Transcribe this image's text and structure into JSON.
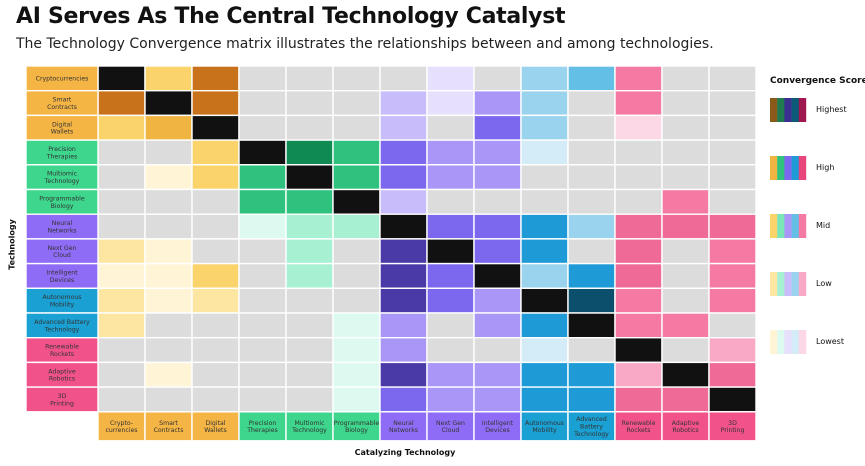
{
  "chart_data": {
    "type": "heatmap",
    "title": "AI Serves As The Central Technology Catalyst",
    "subtitle": "The Technology Convergence matrix illustrates the relationships between and among technologies.",
    "ylabel": "Technology",
    "xlabel": "Catalyzing Technology",
    "legend_title": "Convergence Score",
    "legend_position": "right",
    "levels": [
      "Lowest",
      "Low",
      "Mid",
      "High",
      "Highest"
    ],
    "legend_items": [
      {
        "label": "Highest",
        "colors": [
          "#8b5a1a",
          "#1f7a4d",
          "#3b2f8f",
          "#0b5a78",
          "#a01850"
        ]
      },
      {
        "label": "High",
        "colors": [
          "#f0b440",
          "#2ec27e",
          "#7b68ee",
          "#1e9bd7",
          "#e8457a"
        ]
      },
      {
        "label": "Mid",
        "colors": [
          "#fbd36b",
          "#78e6b7",
          "#a996f7",
          "#63bfe6",
          "#f57aa3"
        ]
      },
      {
        "label": "Low",
        "colors": [
          "#fde6a2",
          "#a8f0d2",
          "#c9bcfa",
          "#9ad3ee",
          "#f9a8c6"
        ]
      },
      {
        "label": "Lowest",
        "colors": [
          "#fff4d6",
          "#dcfaef",
          "#e6e0fd",
          "#d3ecf8",
          "#fcd7e5"
        ]
      }
    ],
    "technologies": [
      {
        "label": "Cryptocurrencies",
        "row_label": "Cryptocurrencies",
        "col_label": "Crypto-\ncurrencies",
        "group": "finance"
      },
      {
        "label": "Smart Contracts",
        "row_label": "Smart\nContracts",
        "col_label": "Smart\nContracts",
        "group": "finance"
      },
      {
        "label": "Digital Wallets",
        "row_label": "Digital\nWallets",
        "col_label": "Digital\nWallets",
        "group": "finance"
      },
      {
        "label": "Precision Therapies",
        "row_label": "Precision\nTherapies",
        "col_label": "Precision\nTherapies",
        "group": "bio"
      },
      {
        "label": "Multiomic Technology",
        "row_label": "Multiomic\nTechnology",
        "col_label": "Multiomic\nTechnology",
        "group": "bio"
      },
      {
        "label": "Programmable Biology",
        "row_label": "Programmable\nBiology",
        "col_label": "Programmable\nBiology",
        "group": "bio"
      },
      {
        "label": "Neural Networks",
        "row_label": "Neural\nNetworks",
        "col_label": "Neural\nNetworks",
        "group": "ai"
      },
      {
        "label": "Next Gen Cloud",
        "row_label": "Next Gen\nCloud",
        "col_label": "Next Gen\nCloud",
        "group": "ai"
      },
      {
        "label": "Intelligent Devices",
        "row_label": "Intelligent\nDevices",
        "col_label": "Intelligent\nDevices",
        "group": "ai"
      },
      {
        "label": "Autonomous Mobility",
        "row_label": "Autonomous\nMobility",
        "col_label": "Autonomous\nMobility",
        "group": "robotics"
      },
      {
        "label": "Advanced Battery Technology",
        "row_label": "Advanced Battery\nTechnology",
        "col_label": "Advanced\nBattery\nTechnology",
        "group": "robotics"
      },
      {
        "label": "Renewable Rockets",
        "row_label": "Renewable\nRockets",
        "col_label": "Renewable\nRockets",
        "group": "space"
      },
      {
        "label": "Adaptive Robotics",
        "row_label": "Adaptive\nRobotics",
        "col_label": "Adaptive\nRobotics",
        "group": "space"
      },
      {
        "label": "3D Printing",
        "row_label": "3D\nPrinting",
        "col_label": "3D\nPrinting",
        "group": "space"
      }
    ],
    "groups": {
      "finance": {
        "color": "#f5b545",
        "shades": [
          "#fff4d6",
          "#fde6a2",
          "#fbd36b",
          "#f0b440",
          "#c8721c"
        ]
      },
      "bio": {
        "color": "#3dd68c",
        "shades": [
          "#dcfaef",
          "#a8f0d2",
          "#78e6b7",
          "#2ec27e",
          "#0f8a52"
        ]
      },
      "ai": {
        "color": "#8f6cf5",
        "shades": [
          "#e6e0fd",
          "#c9bcfa",
          "#a996f7",
          "#7b68ee",
          "#4a3aa8"
        ]
      },
      "robotics": {
        "color": "#1aa0d3",
        "shades": [
          "#d3ecf8",
          "#9ad3ee",
          "#63bfe6",
          "#1e9bd7",
          "#0b4f6c"
        ]
      },
      "space": {
        "color": "#f2528a",
        "shades": [
          "#fcd7e5",
          "#f9a8c6",
          "#f57aa3",
          "#f06a98",
          "#c81f5c"
        ]
      }
    },
    "diagonal_color": "#111111",
    "none_color": "#dcdcdc",
    "matrix": [
      [
        -2,
        3,
        5,
        0,
        0,
        0,
        0,
        1,
        0,
        2,
        3,
        3,
        0,
        0
      ],
      [
        5,
        -2,
        5,
        0,
        0,
        0,
        2,
        1,
        3,
        2,
        0,
        3,
        0,
        0
      ],
      [
        3,
        4,
        -2,
        0,
        0,
        0,
        2,
        0,
        4,
        2,
        0,
        1,
        0,
        0
      ],
      [
        0,
        0,
        3,
        -2,
        5,
        4,
        4,
        3,
        3,
        1,
        0,
        0,
        0,
        0
      ],
      [
        0,
        1,
        3,
        4,
        -2,
        4,
        4,
        3,
        3,
        0,
        0,
        0,
        0,
        0
      ],
      [
        0,
        0,
        0,
        4,
        4,
        -2,
        2,
        0,
        0,
        0,
        0,
        0,
        3,
        0
      ],
      [
        0,
        0,
        0,
        1,
        2,
        2,
        -2,
        4,
        4,
        4,
        2,
        4,
        4,
        4
      ],
      [
        2,
        1,
        0,
        0,
        2,
        0,
        5,
        -2,
        4,
        4,
        0,
        4,
        0,
        3
      ],
      [
        1,
        1,
        3,
        0,
        2,
        0,
        5,
        4,
        -2,
        2,
        4,
        4,
        0,
        3
      ],
      [
        2,
        1,
        2,
        0,
        0,
        0,
        5,
        4,
        3,
        -2,
        5,
        3,
        0,
        3
      ],
      [
        2,
        0,
        0,
        0,
        0,
        1,
        3,
        0,
        3,
        4,
        -2,
        3,
        3,
        0
      ],
      [
        0,
        0,
        0,
        0,
        0,
        1,
        3,
        0,
        0,
        1,
        0,
        -2,
        0,
        2
      ],
      [
        0,
        1,
        0,
        0,
        0,
        1,
        5,
        3,
        3,
        4,
        4,
        2,
        -2,
        4
      ],
      [
        0,
        0,
        0,
        0,
        0,
        1,
        4,
        3,
        3,
        4,
        4,
        4,
        4,
        -2
      ]
    ]
  }
}
